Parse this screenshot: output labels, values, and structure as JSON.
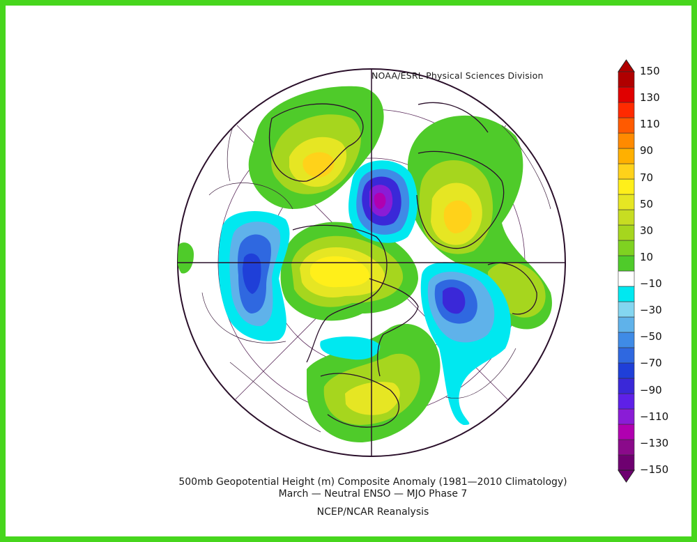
{
  "credit": "NOAA/ESRL Physical Sciences Division",
  "caption": {
    "line1": "500mb Geopotential Height (m) Composite Anomaly (1981—2010 Climatology)",
    "line2": "March — Neutral ENSO — MJO Phase 7",
    "line3": "NCEP/NCAR Reanalysis"
  },
  "colorbar": {
    "labels": [
      "150",
      "130",
      "110",
      "90",
      "70",
      "50",
      "30",
      "10",
      "−10",
      "−30",
      "−50",
      "−70",
      "−90",
      "−110",
      "−130",
      "−150"
    ],
    "colors": [
      "#6e0070",
      "#8a0a8a",
      "#b000b0",
      "#8a1cd6",
      "#5e20e8",
      "#3a28d8",
      "#1f3fd8",
      "#2f68e0",
      "#3f8be6",
      "#5fb2ea",
      "#84d6f0",
      "#00e8f0",
      "#ffffff",
      "#4fcb2a",
      "#7fd221",
      "#a6d61e",
      "#c7dd22",
      "#e6e623",
      "#ffef1a",
      "#ffd21a",
      "#ffb000",
      "#ff8a00",
      "#ff5a00",
      "#ff2a00",
      "#e00000",
      "#b00000"
    ]
  },
  "colors": {
    "frame": "#47d61d",
    "positive_green": "#55cc2a",
    "positive_yellow": "#f0e61e",
    "negative_cyan": "#00e8f0",
    "negative_blue": "#2a5ed8",
    "negative_purple": "#8a1cd6"
  }
}
